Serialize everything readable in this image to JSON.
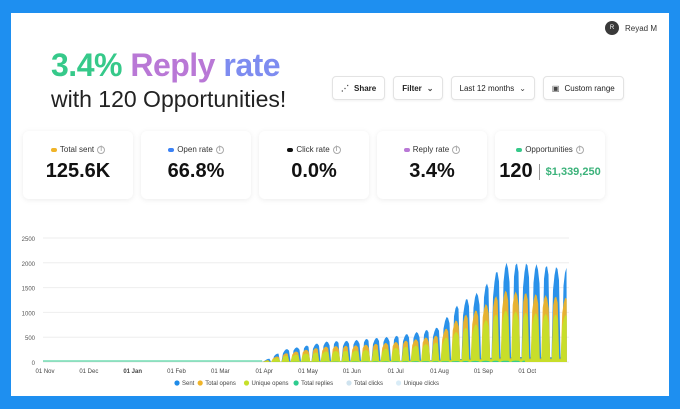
{
  "user": {
    "initials": "R",
    "name": "Reyad M"
  },
  "headline": {
    "rate": "3.4%",
    "reply": "Reply",
    "word": "rate",
    "subline": "with 120 Opportunities!"
  },
  "toolbar": {
    "share_label": "Share",
    "filter_label": "Filter",
    "period_label": "Last 12 months",
    "custom_label": "Custom range"
  },
  "cards": [
    {
      "label": "Total sent",
      "value": "125.6K",
      "color": "#f0b429"
    },
    {
      "label": "Open rate",
      "value": "66.8%",
      "color": "#3b82f6"
    },
    {
      "label": "Click rate",
      "value": "0.0%",
      "color": "#111111"
    },
    {
      "label": "Reply rate",
      "value": "3.4%",
      "color": "#b978d6"
    },
    {
      "label": "Opportunities",
      "value": "120",
      "extra": "$1,339,250",
      "color": "#36c98a"
    }
  ],
  "chart_data": {
    "type": "area",
    "title": "",
    "xlabel": "",
    "ylabel": "",
    "ylim": [
      0,
      2500
    ],
    "yticks": [
      0,
      500,
      1000,
      1500,
      2000,
      2500
    ],
    "x_tick_labels": [
      "01 Nov",
      "01 Dec",
      "01 Jan",
      "01 Feb",
      "01 Mar",
      "01 Apr",
      "01 May",
      "01 Jun",
      "01 Jul",
      "01 Aug",
      "01 Sep",
      "01 Oct"
    ],
    "grid": true,
    "legend_position": "bottom",
    "legend": [
      {
        "name": "Sent",
        "color": "#1f8be8"
      },
      {
        "name": "Total opens",
        "color": "#f0b429"
      },
      {
        "name": "Unique opens",
        "color": "#c6e02a"
      },
      {
        "name": "Total replies",
        "color": "#2ecc8f"
      },
      {
        "name": "Total clicks",
        "color": "#cfe3ef"
      },
      {
        "name": "Unique clicks",
        "color": "#d9ecf7"
      }
    ],
    "series": [
      {
        "name": "Sent",
        "months": [
          "01 Nov",
          "01 Dec",
          "01 Jan",
          "01 Feb",
          "01 Mar",
          "01 Apr",
          "mid Apr",
          "01 May",
          "mid May",
          "01 Jun",
          "mid Jun",
          "01 Jul",
          "mid Jul",
          "01 Aug",
          "mid Aug",
          "01 Sep",
          "mid Sep",
          "01 Oct",
          "end Oct"
        ],
        "values": [
          0,
          0,
          0,
          0,
          0,
          0,
          250,
          330,
          420,
          430,
          480,
          520,
          600,
          700,
          1200,
          1450,
          2000,
          2000,
          1900
        ]
      },
      {
        "name": "Total opens",
        "months": [
          "01 Apr",
          "mid Apr",
          "01 May",
          "mid May",
          "01 Jun",
          "mid Jun",
          "01 Jul",
          "mid Jul",
          "01 Aug",
          "mid Aug",
          "01 Sep",
          "mid Sep",
          "01 Oct",
          "end Oct"
        ],
        "values": [
          0,
          170,
          250,
          320,
          330,
          360,
          400,
          460,
          540,
          900,
          1100,
          1450,
          1400,
          1300
        ]
      },
      {
        "name": "Unique opens",
        "months": [
          "01 Apr",
          "mid Apr",
          "01 May",
          "mid May",
          "01 Jun",
          "mid Jun",
          "01 Jul",
          "mid Jul",
          "01 Aug",
          "mid Aug",
          "01 Sep",
          "mid Sep",
          "01 Oct",
          "end Oct"
        ],
        "values": [
          0,
          120,
          170,
          220,
          230,
          250,
          280,
          330,
          400,
          650,
          800,
          1050,
          1000,
          950
        ]
      },
      {
        "name": "Total replies",
        "months": [
          "01 Apr",
          "01 Jun",
          "01 Aug",
          "01 Oct"
        ],
        "values": [
          0,
          10,
          15,
          30
        ]
      }
    ]
  }
}
